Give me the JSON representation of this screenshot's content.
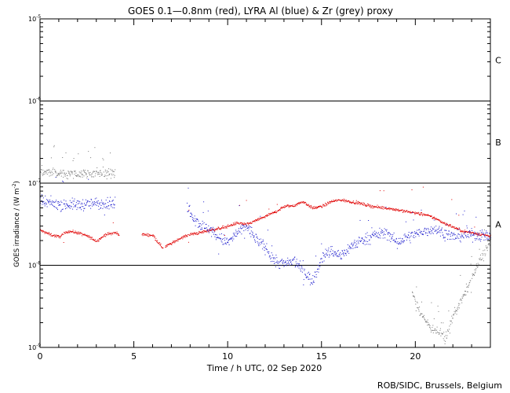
{
  "chart_data": {
    "type": "scatter",
    "title": "GOES 0.1—0.8nm (red), LYRA Al (blue) & Zr (grey) proxy",
    "xlabel": "Time / h UTC, 02 Sep 2020",
    "ylabel_main": "GOES irradiance / (W m",
    "ylabel_sup": "-2",
    "ylabel_end": ")",
    "y_scale": "log",
    "xlim": [
      0,
      24
    ],
    "ylim_exponent": [
      -9,
      -5
    ],
    "x_ticks": [
      0,
      5,
      10,
      15,
      20
    ],
    "y_ticks": [
      {
        "base": "10",
        "exp": "-9"
      },
      {
        "base": "10",
        "exp": "-8"
      },
      {
        "base": "10",
        "exp": "-7"
      },
      {
        "base": "10",
        "exp": "-6"
      },
      {
        "base": "10",
        "exp": "-5"
      }
    ],
    "flare_class_lines": [
      -8,
      -7,
      -6
    ],
    "flare_classes": [
      {
        "label": "A",
        "log_center": -7.5
      },
      {
        "label": "B",
        "log_center": -6.5
      },
      {
        "label": "C",
        "log_center": -5.5
      }
    ],
    "series": [
      {
        "name": "GOES 0.1-0.8nm",
        "color": "#e00000",
        "gaps": [
          [
            4.2,
            5.4
          ],
          [
            6.55,
            6.65
          ]
        ],
        "x": [
          0,
          0.5,
          1,
          1.5,
          2,
          2.5,
          3,
          3.5,
          4,
          4.2,
          5.4,
          6,
          6.5,
          7,
          7.5,
          8,
          8.5,
          9,
          9.5,
          10,
          10.5,
          11,
          11.5,
          12,
          12.5,
          13,
          13.5,
          14,
          14.5,
          15,
          15.5,
          16,
          16.5,
          17,
          17.5,
          18,
          18.5,
          19,
          19.5,
          20,
          20.5,
          21,
          21.5,
          22,
          22.5,
          23,
          23.5,
          24
        ],
        "log": [
          -7.57,
          -7.62,
          -7.65,
          -7.58,
          -7.6,
          -7.64,
          -7.7,
          -7.62,
          -7.6,
          -7.62,
          -7.62,
          -7.63,
          -7.78,
          -7.73,
          -7.66,
          -7.62,
          -7.6,
          -7.57,
          -7.55,
          -7.52,
          -7.48,
          -7.5,
          -7.45,
          -7.4,
          -7.35,
          -7.28,
          -7.27,
          -7.22,
          -7.3,
          -7.28,
          -7.22,
          -7.2,
          -7.22,
          -7.24,
          -7.27,
          -7.29,
          -7.3,
          -7.32,
          -7.34,
          -7.36,
          -7.38,
          -7.42,
          -7.48,
          -7.53,
          -7.58,
          -7.6,
          -7.62,
          -7.64
        ]
      },
      {
        "name": "LYRA Al proxy",
        "color": "#1a1acc",
        "gaps": [
          [
            4.0,
            7.8
          ]
        ],
        "x": [
          0,
          1,
          2,
          3,
          4,
          7.8,
          8.5,
          9,
          9.5,
          10,
          10.5,
          11,
          11.5,
          12,
          12.5,
          13,
          13.5,
          14,
          14.5,
          15,
          15.5,
          16,
          16.5,
          17,
          17.5,
          18,
          18.5,
          19,
          19.5,
          20,
          20.5,
          21,
          21.5,
          22,
          22.5,
          23,
          23.5,
          24
        ],
        "log": [
          -7.23,
          -7.25,
          -7.26,
          -7.24,
          -7.24,
          -7.3,
          -7.5,
          -7.55,
          -7.66,
          -7.72,
          -7.6,
          -7.52,
          -7.68,
          -7.78,
          -7.95,
          -7.98,
          -7.95,
          -8.05,
          -8.2,
          -7.9,
          -7.82,
          -7.88,
          -7.78,
          -7.7,
          -7.66,
          -7.62,
          -7.6,
          -7.72,
          -7.66,
          -7.62,
          -7.58,
          -7.55,
          -7.6,
          -7.65,
          -7.63,
          -7.62,
          -7.63,
          -7.65
        ]
      },
      {
        "name": "LYRA Zr proxy",
        "color": "#777777",
        "gaps": [
          [
            4.0,
            19.8
          ]
        ],
        "x": [
          0,
          1,
          2,
          3,
          4,
          19.8,
          20.3,
          20.8,
          21.2,
          21.6,
          22,
          22.5,
          23,
          23.5,
          24
        ],
        "log": [
          -6.85,
          -6.88,
          -6.88,
          -6.87,
          -6.88,
          -8.3,
          -8.6,
          -8.75,
          -8.8,
          -8.9,
          -8.6,
          -8.4,
          -8.15,
          -7.9,
          -7.7
        ]
      }
    ]
  },
  "credit": "ROB/SIDC, Brussels, Belgium"
}
